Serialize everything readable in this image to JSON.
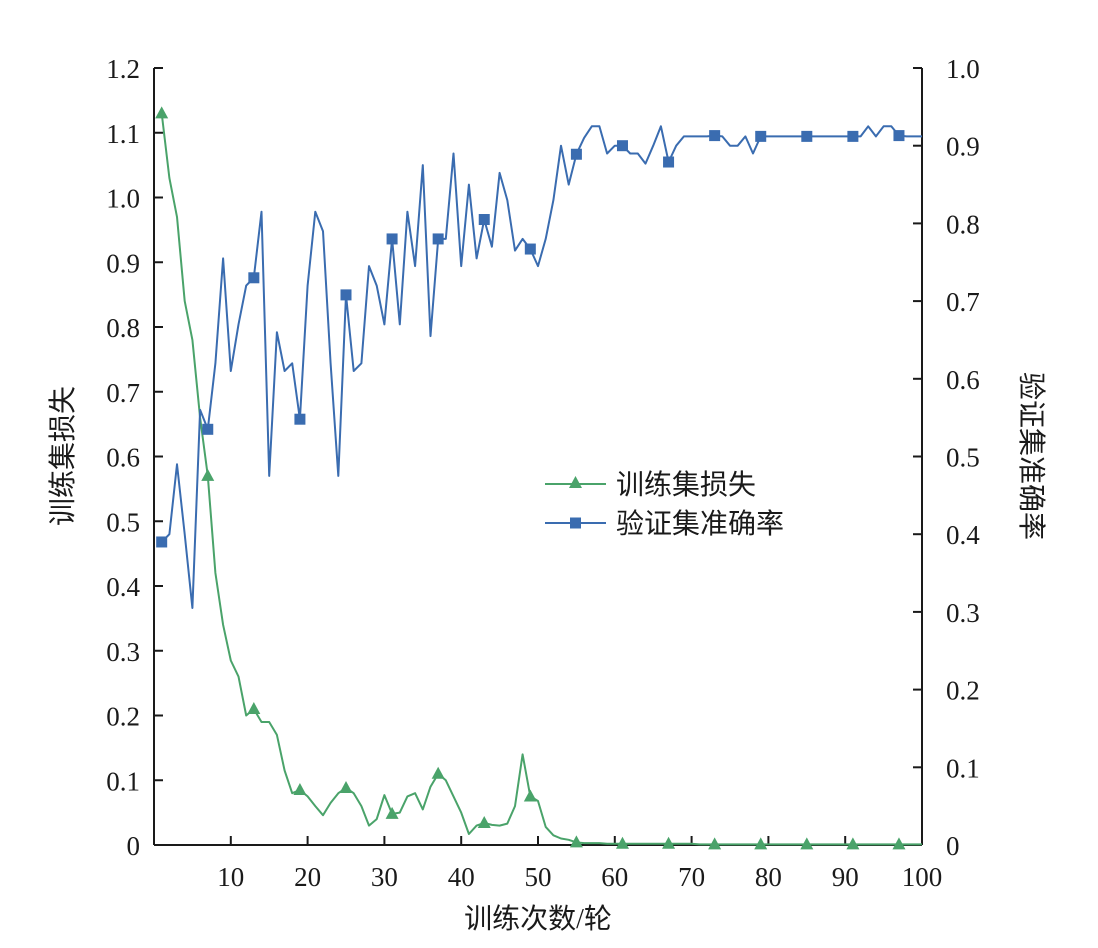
{
  "chart_data": {
    "type": "line",
    "xlabel": "训练次数/轮",
    "ylabel_left": "训练集损失",
    "ylabel_right": "验证集准确率",
    "xlim": [
      0,
      100
    ],
    "ylim_left": [
      0,
      1.2
    ],
    "ylim_right": [
      0,
      1.0
    ],
    "x_ticks": [
      10,
      20,
      30,
      40,
      50,
      60,
      70,
      80,
      90,
      100
    ],
    "y_left_ticks": [
      "0",
      "0.1",
      "0.2",
      "0.3",
      "0.4",
      "0.5",
      "0.6",
      "0.7",
      "0.8",
      "0.9",
      "1.0",
      "1.1",
      "1.2"
    ],
    "y_right_ticks": [
      "0",
      "0.1",
      "0.2",
      "0.3",
      "0.4",
      "0.5",
      "0.6",
      "0.7",
      "0.8",
      "0.9",
      "1.0"
    ],
    "grid": false,
    "legend_position": "center-right",
    "series": [
      {
        "name": "训练集损失",
        "axis": "left",
        "color": "#4aa36a",
        "marker": "triangle",
        "marker_x": [
          1,
          7,
          13,
          19,
          25,
          31,
          37,
          43,
          49,
          55,
          61,
          67,
          73,
          79,
          85,
          91,
          97
        ],
        "x": [
          1,
          2,
          3,
          4,
          5,
          6,
          7,
          8,
          9,
          10,
          11,
          12,
          13,
          14,
          15,
          16,
          17,
          18,
          19,
          20,
          21,
          22,
          23,
          24,
          25,
          26,
          27,
          28,
          29,
          30,
          31,
          32,
          33,
          34,
          35,
          36,
          37,
          38,
          39,
          40,
          41,
          42,
          43,
          44,
          45,
          46,
          47,
          48,
          49,
          50,
          51,
          52,
          53,
          54,
          55,
          56,
          57,
          58,
          59,
          60,
          61,
          62,
          63,
          64,
          65,
          66,
          67,
          68,
          69,
          70,
          71,
          72,
          73,
          74,
          75,
          76,
          77,
          78,
          79,
          80,
          81,
          82,
          83,
          84,
          85,
          86,
          87,
          88,
          89,
          90,
          91,
          92,
          93,
          94,
          95,
          96,
          97,
          98,
          99,
          100
        ],
        "y": [
          1.13,
          1.03,
          0.97,
          0.84,
          0.78,
          0.66,
          0.57,
          0.42,
          0.34,
          0.285,
          0.26,
          0.2,
          0.21,
          0.19,
          0.19,
          0.17,
          0.115,
          0.08,
          0.085,
          0.075,
          0.06,
          0.046,
          0.065,
          0.08,
          0.088,
          0.08,
          0.06,
          0.03,
          0.04,
          0.077,
          0.048,
          0.05,
          0.075,
          0.08,
          0.055,
          0.09,
          0.11,
          0.1,
          0.075,
          0.05,
          0.017,
          0.03,
          0.034,
          0.031,
          0.03,
          0.033,
          0.06,
          0.14,
          0.075,
          0.068,
          0.028,
          0.015,
          0.01,
          0.008,
          0.004,
          0.003,
          0.003,
          0.003,
          0.002,
          0.002,
          0.002,
          0.002,
          0.002,
          0.002,
          0.002,
          0.002,
          0.002,
          0.002,
          0.002,
          0.002,
          0.001,
          0.001,
          0.001,
          0.001,
          0.001,
          0.001,
          0.001,
          0.001,
          0.001,
          0.001,
          0.001,
          0.001,
          0.001,
          0.001,
          0.001,
          0.001,
          0.001,
          0.001,
          0.001,
          0.001,
          0.001,
          0.001,
          0.001,
          0.001,
          0.001,
          0.001,
          0.001,
          0.001,
          0.001,
          0.001
        ]
      },
      {
        "name": "验证集准确率",
        "axis": "right",
        "color": "#3a6cb0",
        "marker": "square",
        "marker_x": [
          1,
          7,
          13,
          19,
          25,
          31,
          37,
          43,
          49,
          55,
          61,
          67,
          73,
          79,
          85,
          91,
          97
        ],
        "x": [
          1,
          2,
          3,
          4,
          5,
          6,
          7,
          8,
          9,
          10,
          11,
          12,
          13,
          14,
          15,
          16,
          17,
          18,
          19,
          20,
          21,
          22,
          23,
          24,
          25,
          26,
          27,
          28,
          29,
          30,
          31,
          32,
          33,
          34,
          35,
          36,
          37,
          38,
          39,
          40,
          41,
          42,
          43,
          44,
          45,
          46,
          47,
          48,
          49,
          50,
          51,
          52,
          53,
          54,
          55,
          56,
          57,
          58,
          59,
          60,
          61,
          62,
          63,
          64,
          65,
          66,
          67,
          68,
          69,
          70,
          71,
          72,
          73,
          74,
          75,
          76,
          77,
          78,
          79,
          80,
          81,
          82,
          83,
          84,
          85,
          86,
          87,
          88,
          89,
          90,
          91,
          92,
          93,
          94,
          95,
          96,
          97,
          98,
          99,
          100
        ],
        "y": [
          0.39,
          0.4,
          0.49,
          0.4,
          0.305,
          0.56,
          0.535,
          0.62,
          0.755,
          0.61,
          0.67,
          0.72,
          0.73,
          0.815,
          0.475,
          0.66,
          0.61,
          0.62,
          0.548,
          0.72,
          0.815,
          0.79,
          0.62,
          0.475,
          0.708,
          0.61,
          0.62,
          0.745,
          0.72,
          0.67,
          0.78,
          0.67,
          0.815,
          0.745,
          0.875,
          0.655,
          0.78,
          0.78,
          0.89,
          0.745,
          0.85,
          0.755,
          0.805,
          0.77,
          0.865,
          0.83,
          0.765,
          0.78,
          0.767,
          0.745,
          0.78,
          0.83,
          0.9,
          0.85,
          0.889,
          0.91,
          0.925,
          0.925,
          0.89,
          0.9,
          0.9,
          0.89,
          0.89,
          0.877,
          0.9,
          0.925,
          0.879,
          0.9,
          0.912,
          0.912,
          0.912,
          0.912,
          0.913,
          0.912,
          0.9,
          0.9,
          0.912,
          0.89,
          0.912,
          0.912,
          0.912,
          0.912,
          0.912,
          0.912,
          0.912,
          0.912,
          0.912,
          0.912,
          0.912,
          0.912,
          0.912,
          0.912,
          0.925,
          0.912,
          0.925,
          0.925,
          0.913,
          0.912,
          0.912,
          0.912
        ]
      }
    ]
  }
}
